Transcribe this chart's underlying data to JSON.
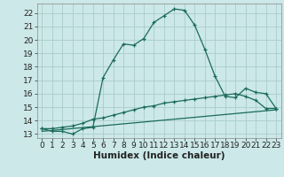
{
  "title": "",
  "xlabel": "Humidex (Indice chaleur)",
  "bg_color": "#cce8e8",
  "grid_color": "#aacccc",
  "line_color": "#1a6b5a",
  "xlim": [
    -0.5,
    23.5
  ],
  "ylim": [
    12.7,
    22.7
  ],
  "yticks": [
    13,
    14,
    15,
    16,
    17,
    18,
    19,
    20,
    21,
    22
  ],
  "xticks": [
    0,
    1,
    2,
    3,
    4,
    5,
    6,
    7,
    8,
    9,
    10,
    11,
    12,
    13,
    14,
    15,
    16,
    17,
    18,
    19,
    20,
    21,
    22,
    23
  ],
  "curve1_x": [
    0,
    1,
    2,
    3,
    4,
    5,
    6,
    7,
    8,
    9,
    10,
    11,
    12,
    13,
    14,
    15,
    16,
    17,
    18,
    19,
    20,
    21,
    22,
    23
  ],
  "curve1_y": [
    13.4,
    13.2,
    13.2,
    13.0,
    13.4,
    13.5,
    17.2,
    18.5,
    19.7,
    19.6,
    20.1,
    21.3,
    21.8,
    22.3,
    22.2,
    21.1,
    19.3,
    17.3,
    15.8,
    15.7,
    16.4,
    16.1,
    16.0,
    14.9
  ],
  "curve2_x": [
    0,
    1,
    2,
    3,
    4,
    5,
    6,
    7,
    8,
    9,
    10,
    11,
    12,
    13,
    14,
    15,
    16,
    17,
    18,
    19,
    20,
    21,
    22,
    23
  ],
  "curve2_y": [
    13.4,
    13.4,
    13.5,
    13.6,
    13.8,
    14.1,
    14.2,
    14.4,
    14.6,
    14.8,
    15.0,
    15.1,
    15.3,
    15.4,
    15.5,
    15.6,
    15.7,
    15.8,
    15.9,
    16.0,
    15.8,
    15.5,
    14.9,
    14.9
  ],
  "curve3_x": [
    0,
    23
  ],
  "curve3_y": [
    13.2,
    14.8
  ],
  "tick_fontsize": 6.5,
  "xlabel_fontsize": 7.5
}
